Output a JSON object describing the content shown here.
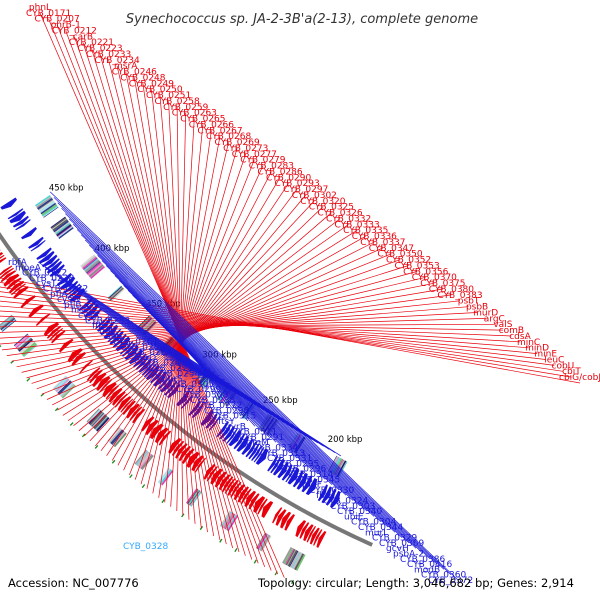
{
  "title": "Synechococcus sp. JA-2-3B'a(2-13), complete genome",
  "accession": "Accession: NC_007776",
  "summary": "Topology: circular; Length: 3,046,682 bp; Genes: 2,914",
  "colors": {
    "forward_strand": "#e8000b",
    "reverse_strand": "#1a18d8",
    "highlight": "#33a8ff",
    "backbone": "#777777",
    "rna_marker": "#1f8a1f"
  },
  "axis": {
    "ticks": [
      "200 kbp",
      "250 kbp",
      "300 kbp",
      "350 kbp",
      "400 kbp",
      "450 kbp"
    ]
  },
  "forward_labels": [
    "phnL",
    "CYB_0171",
    "CYB_0207",
    "phrB-1",
    "CYB_0212",
    "carB",
    "CYB_0221",
    "CYB_0223",
    "CYB_0233",
    "CYB_0234",
    "msrA",
    "CYB_0246",
    "CYB_0248",
    "CYB_0249",
    "CYB_0250",
    "CYB_0251",
    "CYB_0258",
    "CYB_0259",
    "CYB_0263",
    "CYB_0265",
    "CYB_0266",
    "CYB_0267",
    "CYB_0268",
    "CYB_0269",
    "CYB_0273",
    "CYB_0277",
    "CYB_0279",
    "CYB_0283",
    "CYB_0286",
    "CYB_0290",
    "CYB_0293",
    "CYB_0297",
    "CYB_0302",
    "CYB_0320",
    "CYB_0325",
    "CYB_0326",
    "CYB_0332",
    "CYB_0333",
    "CYB_0335",
    "CYB_0336",
    "CYB_0337",
    "CYB_0347",
    "CYB_0350",
    "CYB_0352",
    "CYB_0353",
    "CYB_0356",
    "CYB_0370",
    "CYB_0375",
    "CYB_0380",
    "CYB_0383",
    "psbT",
    "psbB",
    "murD",
    "argC",
    "valS",
    "comB",
    "cdsA",
    "minC",
    "minD",
    "minE",
    "leuC",
    "cobU",
    "cbiT",
    "cbiG/cobJ"
  ],
  "reverse_labels": [
    "rbfA",
    "moeA",
    "CYB_0222",
    "CYB_0228",
    "cysT",
    "CYB_0232",
    "pflA",
    "cysW",
    "pflB",
    "hisC",
    "cysA",
    "CYB_0253",
    "ffh",
    "ndk",
    "sbp",
    "CYB_0261",
    "CYB_0280",
    "CYB_0264",
    "purQ",
    "CYB_0247",
    "CYB_0271",
    "CYB_0254",
    "purS",
    "CYB_0305",
    "CYB_0299",
    "CYB_0308",
    "CYB_0288",
    "CYB_0272",
    "CYB_0298",
    "CYB_0315",
    "ftsY",
    "gyrB",
    "CYB_0311",
    "CYB_0291",
    "rimM",
    "CYB_0334",
    "CYB_0313",
    "CYB_0331",
    "CYB_0295",
    "CYB_0296",
    "CYB_0314",
    "CYB_0345",
    "pyrF",
    "CYB_0330",
    "fba",
    "CYB_0324",
    "CYB_0303",
    "CYB_0340",
    "ubiE",
    "CYB_0304",
    "CYB_0344",
    "murI",
    "CYB_0329",
    "CYB_0369",
    "gcvH",
    "psbA-2",
    "CYB_0386",
    "CYB_0416",
    "modB",
    "CYB_0360",
    "CYB_0372"
  ],
  "highlight_labels": [
    "CYB_0328"
  ]
}
